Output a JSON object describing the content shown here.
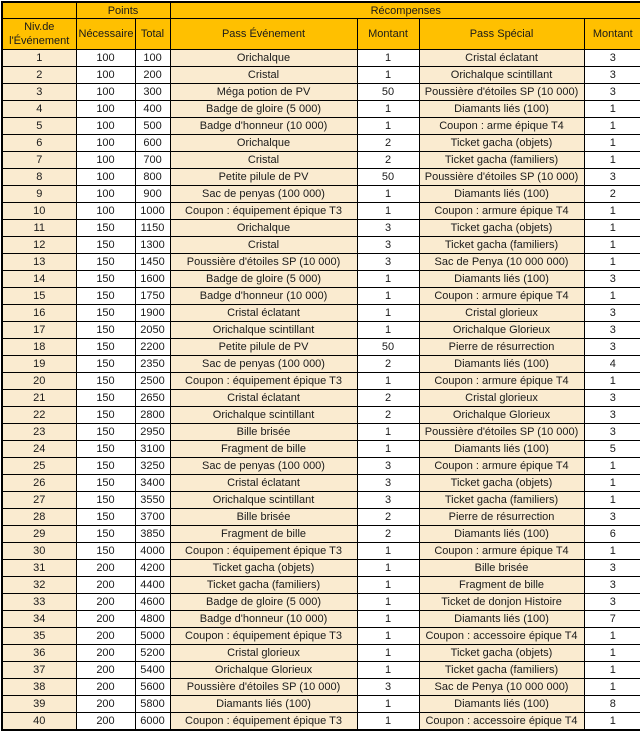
{
  "table": {
    "colors": {
      "header_bg": "#FFC000",
      "row_tint": "#FAEBD0",
      "row_white": "#FFFFFF",
      "border": "#000000"
    },
    "headers": {
      "corner": "",
      "points_group": "Points",
      "rewards_group": "Récompenses",
      "level": "Niv.de l'Événement",
      "necessary": "Nécessaire",
      "total": "Total",
      "pass_event": "Pass Événement",
      "amount_event": "Montant",
      "pass_special": "Pass Spécial",
      "amount_special": "Montant"
    },
    "rows": [
      [
        "1",
        "100",
        "100",
        "Orichalque",
        "1",
        "Cristal éclatant",
        "3"
      ],
      [
        "2",
        "100",
        "200",
        "Cristal",
        "1",
        "Orichalque scintillant",
        "3"
      ],
      [
        "3",
        "100",
        "300",
        "Méga potion de PV",
        "50",
        "Poussière d'étoiles SP (10 000)",
        "3"
      ],
      [
        "4",
        "100",
        "400",
        "Badge de gloire (5 000)",
        "1",
        "Diamants liés (100)",
        "1"
      ],
      [
        "5",
        "100",
        "500",
        "Badge d'honneur (10 000)",
        "1",
        "Coupon : arme épique T4",
        "1"
      ],
      [
        "6",
        "100",
        "600",
        "Orichalque",
        "2",
        "Ticket gacha (objets)",
        "1"
      ],
      [
        "7",
        "100",
        "700",
        "Cristal",
        "2",
        "Ticket gacha (familiers)",
        "1"
      ],
      [
        "8",
        "100",
        "800",
        "Petite pilule de PV",
        "50",
        "Poussière d'étoiles SP (10 000)",
        "3"
      ],
      [
        "9",
        "100",
        "900",
        "Sac de penyas (100 000)",
        "1",
        "Diamants liés (100)",
        "2"
      ],
      [
        "10",
        "100",
        "1000",
        "Coupon : équipement épique T3",
        "1",
        "Coupon : armure épique T4",
        "1"
      ],
      [
        "11",
        "150",
        "1150",
        "Orichalque",
        "3",
        "Ticket gacha (objets)",
        "1"
      ],
      [
        "12",
        "150",
        "1300",
        "Cristal",
        "3",
        "Ticket gacha (familiers)",
        "1"
      ],
      [
        "13",
        "150",
        "1450",
        "Poussière d'étoiles SP (10 000)",
        "3",
        "Sac de Penya (10 000 000)",
        "1"
      ],
      [
        "14",
        "150",
        "1600",
        "Badge de gloire (5 000)",
        "1",
        "Diamants liés (100)",
        "3"
      ],
      [
        "15",
        "150",
        "1750",
        "Badge d'honneur (10 000)",
        "1",
        "Coupon : armure épique T4",
        "1"
      ],
      [
        "16",
        "150",
        "1900",
        "Cristal éclatant",
        "1",
        "Cristal glorieux",
        "3"
      ],
      [
        "17",
        "150",
        "2050",
        "Orichalque scintillant",
        "1",
        "Orichalque Glorieux",
        "3"
      ],
      [
        "18",
        "150",
        "2200",
        "Petite pilule de PV",
        "50",
        "Pierre de résurrection",
        "3"
      ],
      [
        "19",
        "150",
        "2350",
        "Sac de penyas (100 000)",
        "2",
        "Diamants liés (100)",
        "4"
      ],
      [
        "20",
        "150",
        "2500",
        "Coupon : équipement épique T3",
        "1",
        "Coupon : armure épique T4",
        "1"
      ],
      [
        "21",
        "150",
        "2650",
        "Cristal éclatant",
        "2",
        "Cristal glorieux",
        "3"
      ],
      [
        "22",
        "150",
        "2800",
        "Orichalque scintillant",
        "2",
        "Orichalque Glorieux",
        "3"
      ],
      [
        "23",
        "150",
        "2950",
        "Bille brisée",
        "1",
        "Poussière d'étoiles SP (10 000)",
        "3"
      ],
      [
        "24",
        "150",
        "3100",
        "Fragment de bille",
        "1",
        "Diamants liés (100)",
        "5"
      ],
      [
        "25",
        "150",
        "3250",
        "Sac de penyas (100 000)",
        "3",
        "Coupon : armure épique T4",
        "1"
      ],
      [
        "26",
        "150",
        "3400",
        "Cristal éclatant",
        "3",
        "Ticket gacha (objets)",
        "1"
      ],
      [
        "27",
        "150",
        "3550",
        "Orichalque scintillant",
        "3",
        "Ticket gacha (familiers)",
        "1"
      ],
      [
        "28",
        "150",
        "3700",
        "Bille brisée",
        "2",
        "Pierre de résurrection",
        "3"
      ],
      [
        "29",
        "150",
        "3850",
        "Fragment de bille",
        "2",
        "Diamants liés (100)",
        "6"
      ],
      [
        "30",
        "150",
        "4000",
        "Coupon : équipement épique T3",
        "1",
        "Coupon : armure épique T4",
        "1"
      ],
      [
        "31",
        "200",
        "4200",
        "Ticket gacha (objets)",
        "1",
        "Bille brisée",
        "3"
      ],
      [
        "32",
        "200",
        "4400",
        "Ticket gacha (familiers)",
        "1",
        "Fragment de bille",
        "3"
      ],
      [
        "33",
        "200",
        "4600",
        "Badge de gloire (5 000)",
        "1",
        "Ticket de donjon Histoire",
        "3"
      ],
      [
        "34",
        "200",
        "4800",
        "Badge d'honneur (10 000)",
        "1",
        "Diamants liés (100)",
        "7"
      ],
      [
        "35",
        "200",
        "5000",
        "Coupon : équipement épique T3",
        "1",
        "Coupon : accessoire épique T4",
        "1"
      ],
      [
        "36",
        "200",
        "5200",
        "Cristal glorieux",
        "1",
        "Ticket gacha (objets)",
        "1"
      ],
      [
        "37",
        "200",
        "5400",
        "Orichalque Glorieux",
        "1",
        "Ticket gacha (familiers)",
        "1"
      ],
      [
        "38",
        "200",
        "5600",
        "Poussière d'étoiles SP (10 000)",
        "3",
        "Sac de Penya (10 000 000)",
        "1"
      ],
      [
        "39",
        "200",
        "5800",
        "Diamants liés (100)",
        "1",
        "Diamants liés (100)",
        "8"
      ],
      [
        "40",
        "200",
        "6000",
        "Coupon : équipement épique T3",
        "1",
        "Coupon : accessoire épique T4",
        "1"
      ]
    ]
  }
}
